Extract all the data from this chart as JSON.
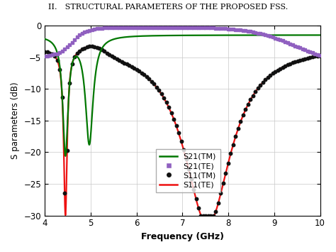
{
  "title": "II.  STRUCTURAL PARAMETERS OF THE PROPOSED FSS.",
  "xlabel": "Frequency (GHz)",
  "ylabel": "S parameters (dB)",
  "xlim": [
    4,
    10
  ],
  "ylim": [
    -30,
    0
  ],
  "xticks": [
    4,
    5,
    6,
    7,
    8,
    9,
    10
  ],
  "yticks": [
    0,
    -5,
    -10,
    -15,
    -20,
    -25,
    -30
  ],
  "colors": {
    "S21_TM": "#007700",
    "S21_TE": "#9060c0",
    "S11_TM": "#111111",
    "S11_TE": "#ee1111"
  },
  "background_color": "#ffffff",
  "grid_color": "#c8c8c8"
}
